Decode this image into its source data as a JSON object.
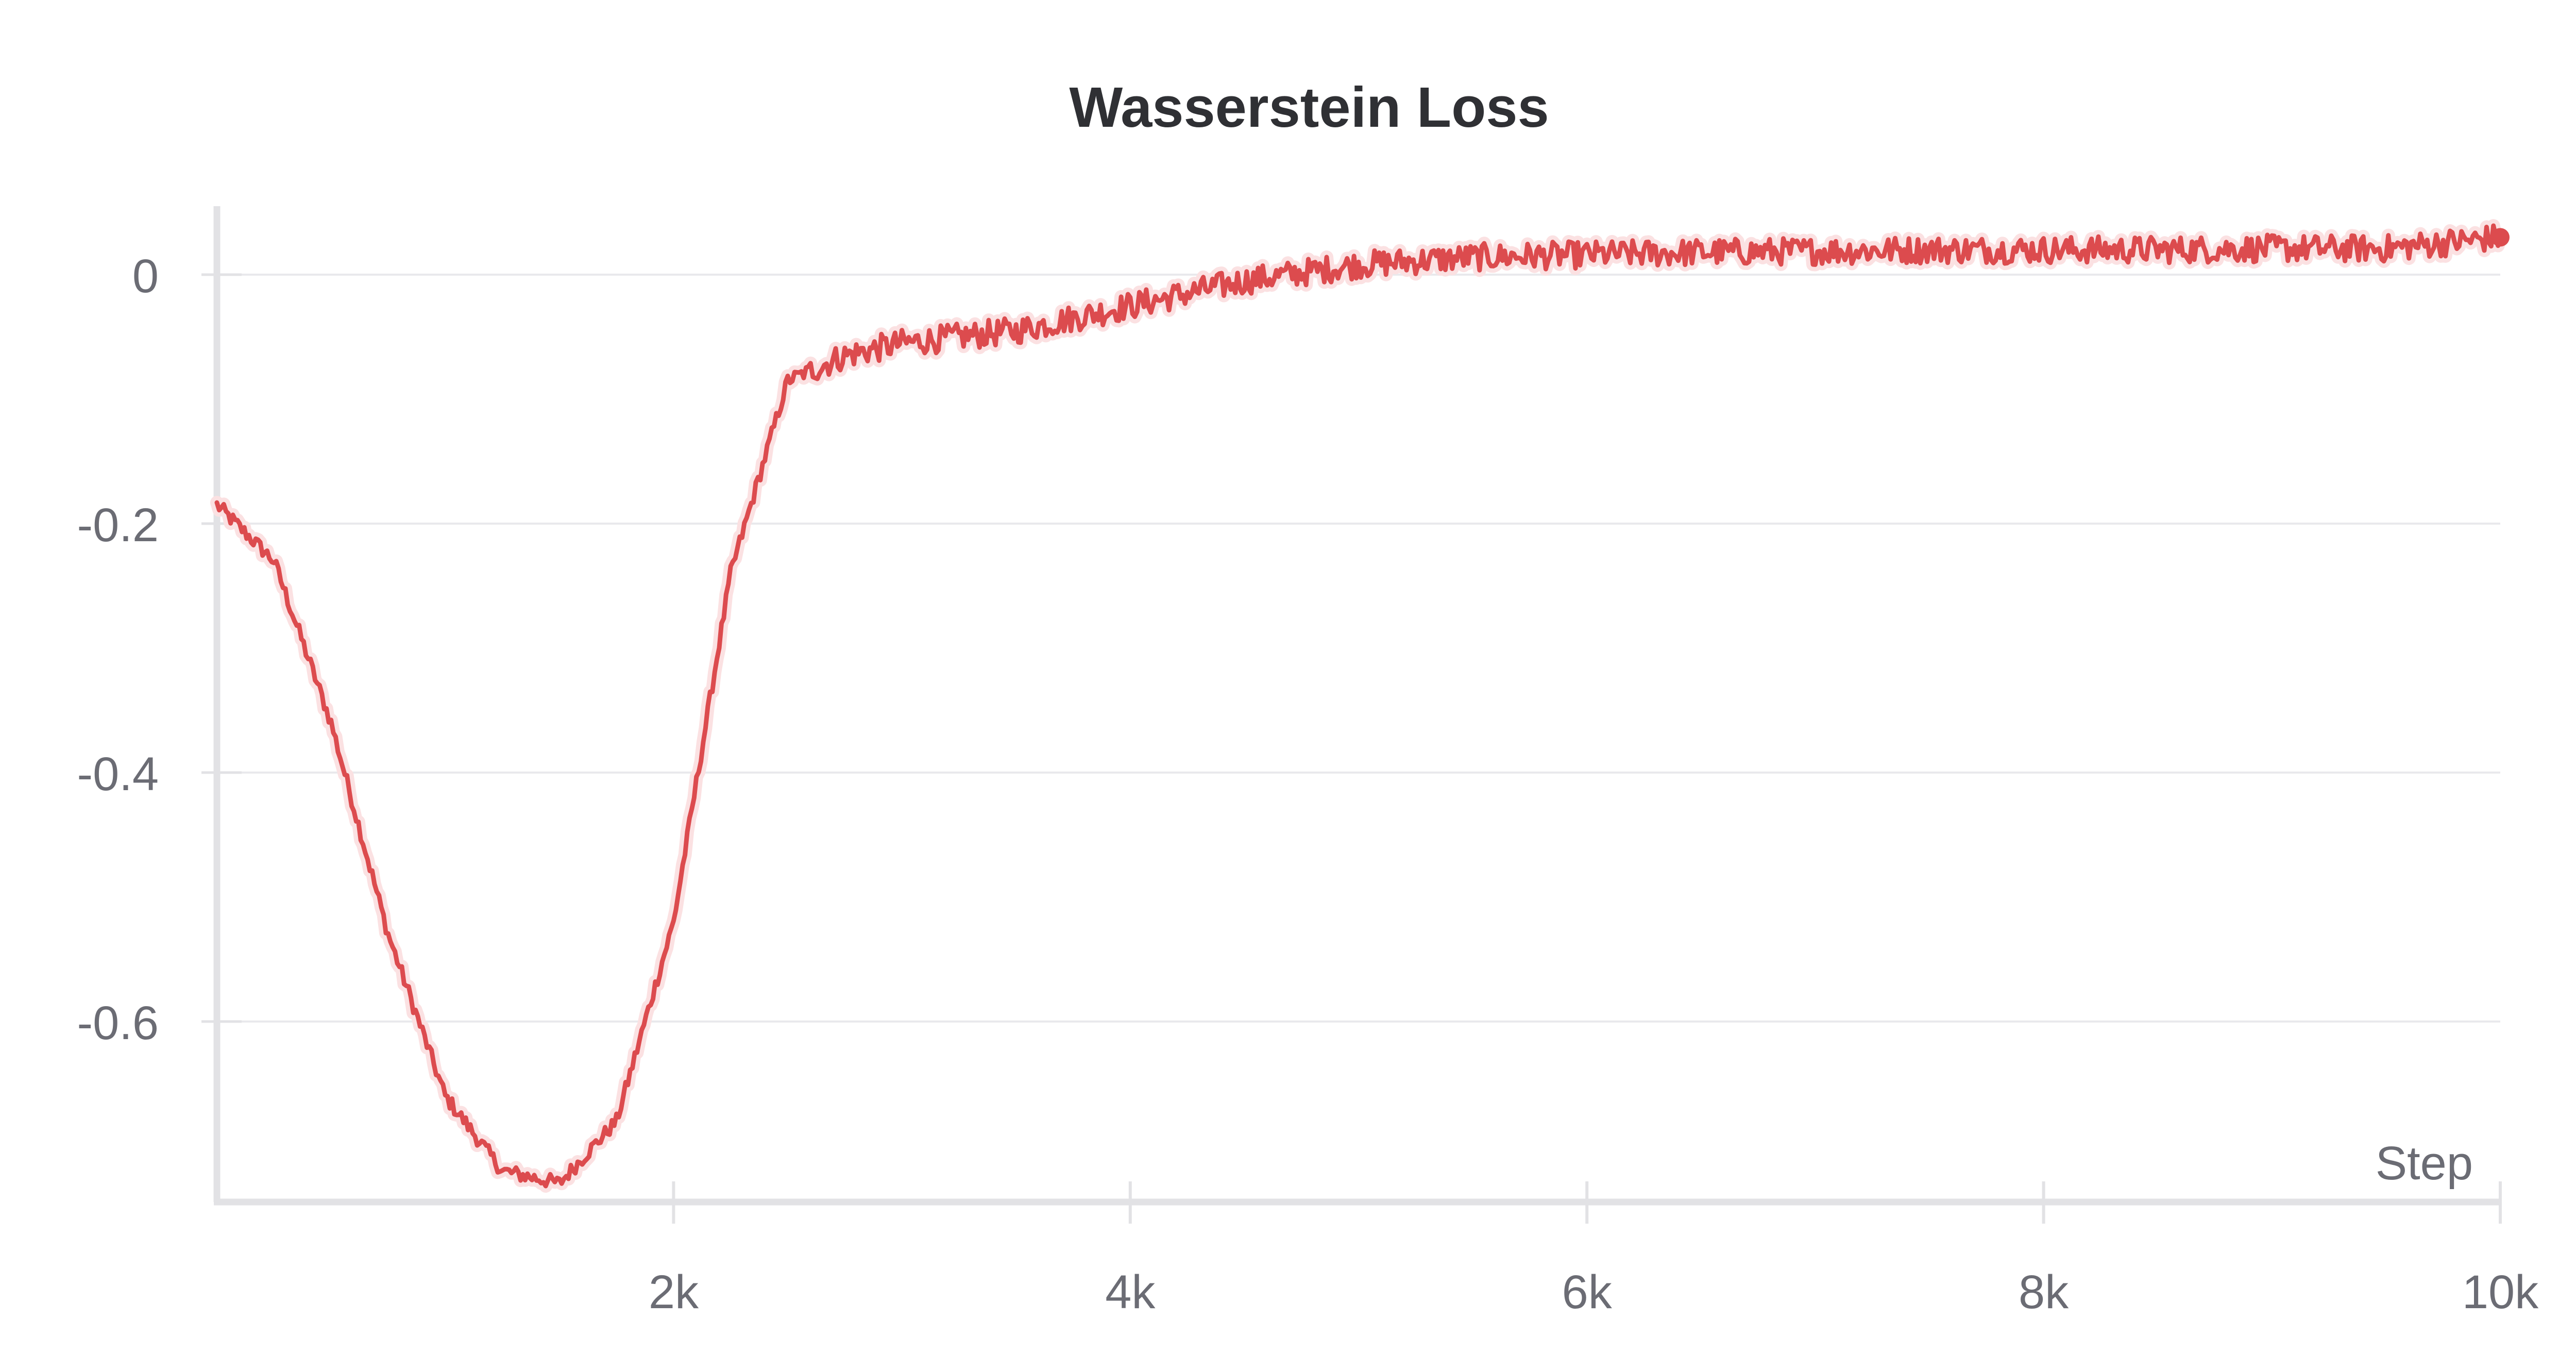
{
  "chart_data": {
    "type": "line",
    "title": "Wasserstein Loss",
    "xlabel": "Step",
    "ylabel": "",
    "xlim": [
      0,
      10000
    ],
    "ylim": [
      -0.745,
      0.055
    ],
    "x_ticks": [
      {
        "value": 2000,
        "label": "2k"
      },
      {
        "value": 4000,
        "label": "4k"
      },
      {
        "value": 6000,
        "label": "6k"
      },
      {
        "value": 8000,
        "label": "8k"
      },
      {
        "value": 10000,
        "label": "10k"
      }
    ],
    "y_ticks": [
      {
        "value": 0,
        "label": "0"
      },
      {
        "value": -0.2,
        "label": "-0.2"
      },
      {
        "value": -0.4,
        "label": "-0.4"
      },
      {
        "value": -0.6,
        "label": "-0.6"
      }
    ],
    "grid": true,
    "legend": "none",
    "series": [
      {
        "color": "#dc4b4e",
        "x": [
          0,
          250,
          500,
          750,
          1000,
          1250,
          1500,
          1750,
          2000,
          2250,
          2500,
          2750,
          3000,
          3500,
          4000,
          4500,
          5000,
          5500,
          6000,
          6500,
          7000,
          7500,
          8000,
          8500,
          9000,
          9500,
          10000
        ],
        "values": [
          -0.185,
          -0.23,
          -0.36,
          -0.53,
          -0.66,
          -0.72,
          -0.73,
          -0.68,
          -0.52,
          -0.24,
          -0.085,
          -0.065,
          -0.055,
          -0.045,
          -0.025,
          -0.005,
          0.008,
          0.014,
          0.016,
          0.018,
          0.019,
          0.02,
          0.02,
          0.02,
          0.021,
          0.021,
          0.03
        ]
      }
    ]
  }
}
